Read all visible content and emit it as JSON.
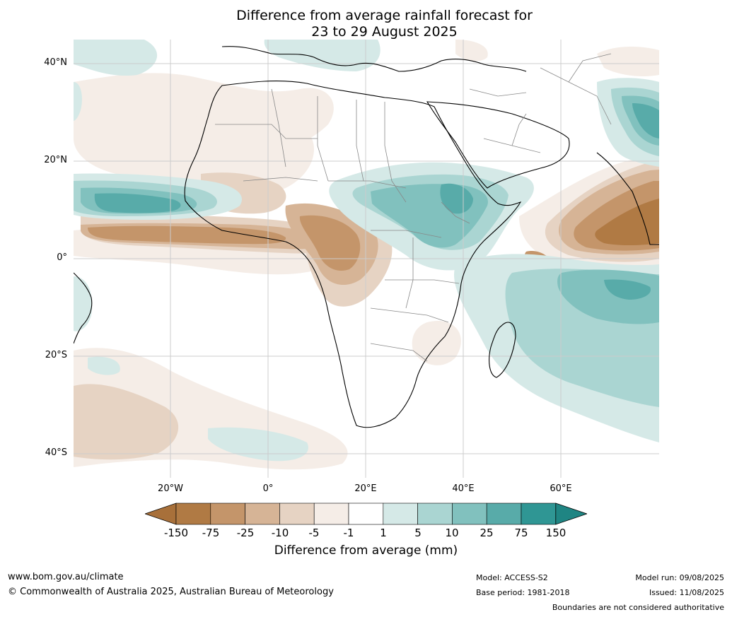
{
  "title_line1": "Difference from average rainfall forecast for",
  "title_line2": "23 to 29 August 2025",
  "map": {
    "lat_labels": [
      "40°N",
      "20°N",
      "0°",
      "20°S",
      "40°S"
    ],
    "lon_labels": [
      "20°W",
      "0°",
      "20°E",
      "40°E",
      "60°E"
    ]
  },
  "colorbar": {
    "ticks": [
      "-150",
      "-75",
      "-25",
      "-10",
      "-5",
      "-1",
      "1",
      "5",
      "10",
      "25",
      "75",
      "150"
    ],
    "colors": [
      "#a8703a",
      "#b07a44",
      "#c4956a",
      "#d6b496",
      "#e6d3c3",
      "#f5ede7",
      "#ffffff",
      "#d5e9e7",
      "#aad5d2",
      "#81c1be",
      "#58aba9",
      "#2f9694",
      "#1f8583"
    ],
    "label": "Difference from average (mm)"
  },
  "footer": {
    "url": "www.bom.gov.au/climate",
    "copyright": "© Commonwealth of Australia 2025, Australian Bureau of Meteorology",
    "model": "Model: ACCESS-S2",
    "base_period": "Base period: 1981-2018",
    "model_run": "Model run: 09/08/2025",
    "issued": "Issued: 11/08/2025",
    "disclaimer": "Boundaries are not considered authoritative"
  }
}
